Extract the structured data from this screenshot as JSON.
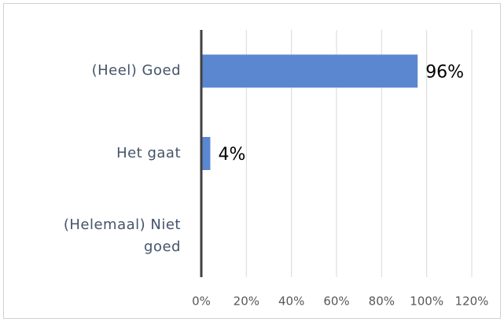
{
  "chart_data": {
    "type": "bar",
    "orientation": "horizontal",
    "categories": [
      "(Heel) Goed",
      "Het gaat",
      "(Helemaal) Niet goed"
    ],
    "values": [
      96,
      4,
      0
    ],
    "value_labels": [
      "96%",
      "4%",
      null
    ],
    "color": "#5b87d0",
    "xlim": [
      0,
      120
    ],
    "xticks": [
      {
        "value": 0,
        "label": "0%"
      },
      {
        "value": 20,
        "label": "20%"
      },
      {
        "value": 40,
        "label": "40%"
      },
      {
        "value": 60,
        "label": "60%"
      },
      {
        "value": 80,
        "label": "80%"
      },
      {
        "value": 100,
        "label": "100%"
      },
      {
        "value": 120,
        "label": "120%"
      }
    ],
    "grid": true
  }
}
